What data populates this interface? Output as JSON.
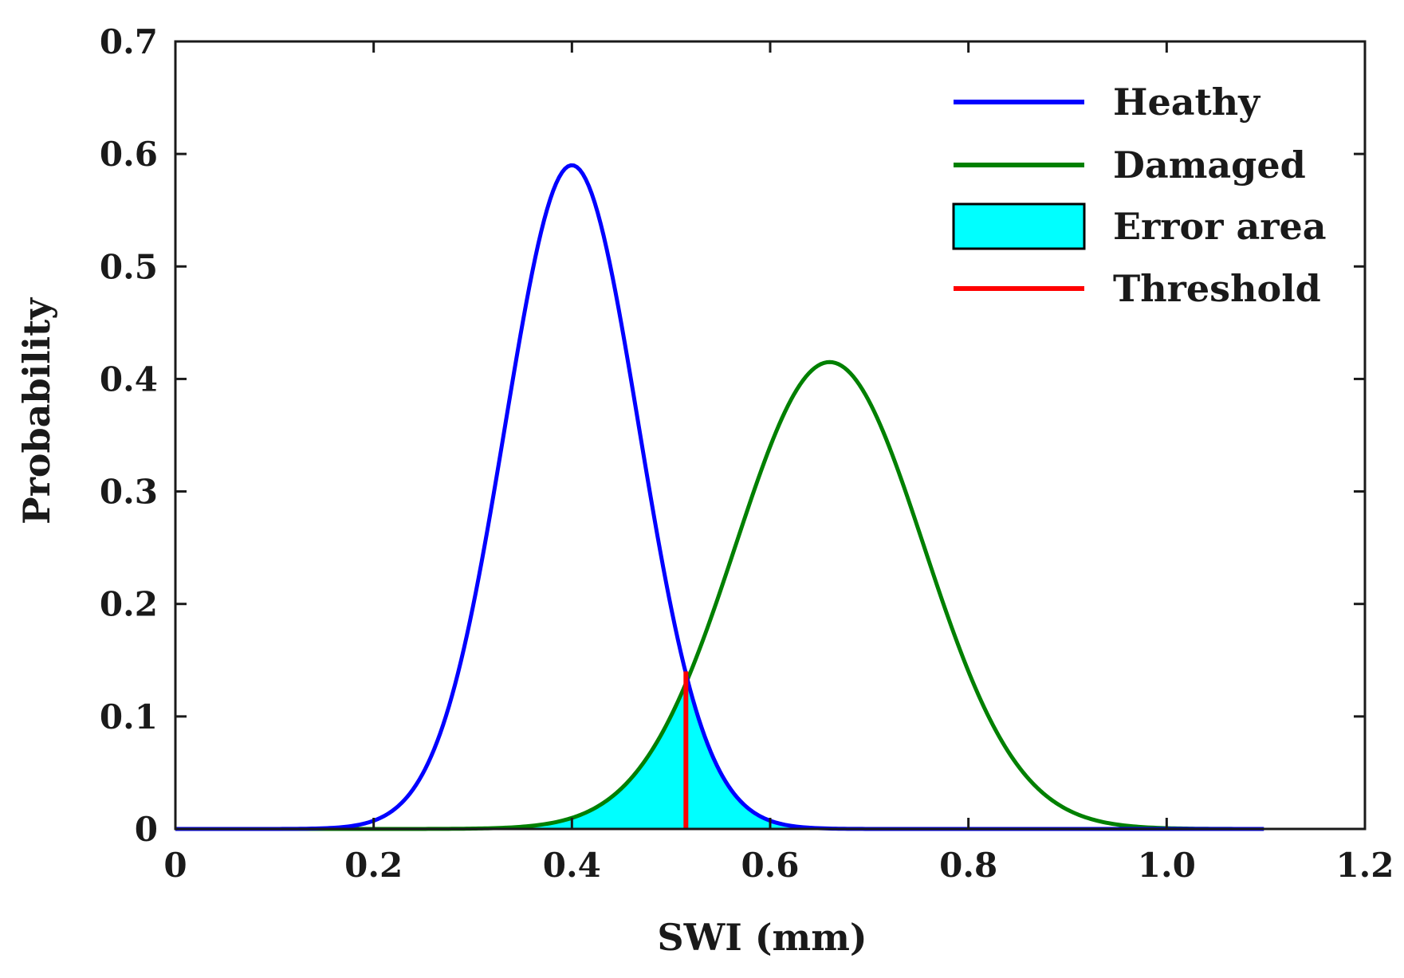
{
  "chart_data": {
    "type": "line",
    "title": "",
    "xlabel": "SWI (mm)",
    "ylabel": "Probability",
    "xlim": [
      0,
      1.2
    ],
    "ylim": [
      0,
      0.7
    ],
    "x_ticks": [
      0,
      0.2,
      0.4,
      0.6,
      0.8,
      1.0,
      1.2
    ],
    "x_tick_labels": [
      "0",
      "0.2",
      "0.4",
      "0.6",
      "0.8",
      "1.0",
      "1.2"
    ],
    "y_ticks": [
      0,
      0.1,
      0.2,
      0.3,
      0.4,
      0.5,
      0.6,
      0.7
    ],
    "y_tick_labels": [
      "0",
      "0.1",
      "0.2",
      "0.3",
      "0.4",
      "0.5",
      "0.6",
      "0.7"
    ],
    "grid": false,
    "legend_position": "top-right",
    "series": [
      {
        "name": "Heathy",
        "kind": "gaussian",
        "mean": 0.4,
        "sd": 0.0675,
        "peak": 0.59,
        "x_range": [
          0,
          1.1
        ],
        "color": "#0000ff"
      },
      {
        "name": "Damaged",
        "kind": "gaussian",
        "mean": 0.66,
        "sd": 0.095,
        "peak": 0.415,
        "x_range": [
          0,
          1.1
        ],
        "color": "#008000"
      },
      {
        "name": "Error area",
        "kind": "area",
        "description_of": "overlap under min of both curves",
        "x_range": [
          0.3,
          0.7
        ],
        "color": "#00ffff"
      },
      {
        "name": "Threshold",
        "kind": "vline",
        "x": 0.515,
        "y_top": 0.14,
        "color": "#ff0000"
      }
    ],
    "legend": [
      {
        "label": "Heathy",
        "type": "line",
        "color": "#0000ff"
      },
      {
        "label": "Damaged",
        "type": "line",
        "color": "#008000"
      },
      {
        "label": "Error area",
        "type": "patch",
        "color": "#00ffff"
      },
      {
        "label": "Threshold",
        "type": "line",
        "color": "#ff0000"
      }
    ]
  }
}
